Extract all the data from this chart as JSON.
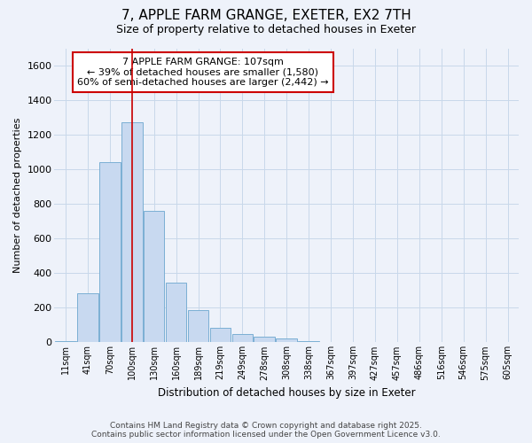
{
  "title1": "7, APPLE FARM GRANGE, EXETER, EX2 7TH",
  "title2": "Size of property relative to detached houses in Exeter",
  "xlabel": "Distribution of detached houses by size in Exeter",
  "ylabel": "Number of detached properties",
  "categories": [
    "11sqm",
    "41sqm",
    "70sqm",
    "100sqm",
    "130sqm",
    "160sqm",
    "189sqm",
    "219sqm",
    "249sqm",
    "278sqm",
    "308sqm",
    "338sqm",
    "367sqm",
    "397sqm",
    "427sqm",
    "457sqm",
    "486sqm",
    "516sqm",
    "546sqm",
    "575sqm",
    "605sqm"
  ],
  "values": [
    5,
    285,
    1045,
    1275,
    760,
    345,
    185,
    85,
    50,
    35,
    20,
    5,
    0,
    0,
    0,
    0,
    0,
    0,
    0,
    0,
    0
  ],
  "bar_color": "#c8d9f0",
  "bar_edge_color": "#7bafd4",
  "grid_color": "#c8d8ea",
  "background_color": "#eef2fa",
  "vline_x_index": 3,
  "vline_color": "#cc0000",
  "annotation_text": "7 APPLE FARM GRANGE: 107sqm\n← 39% of detached houses are smaller (1,580)\n60% of semi-detached houses are larger (2,442) →",
  "annotation_box_color": "white",
  "annotation_box_edge": "#cc0000",
  "ylim": [
    0,
    1700
  ],
  "yticks": [
    0,
    200,
    400,
    600,
    800,
    1000,
    1200,
    1400,
    1600
  ],
  "footer1": "Contains HM Land Registry data © Crown copyright and database right 2025.",
  "footer2": "Contains public sector information licensed under the Open Government Licence v3.0."
}
